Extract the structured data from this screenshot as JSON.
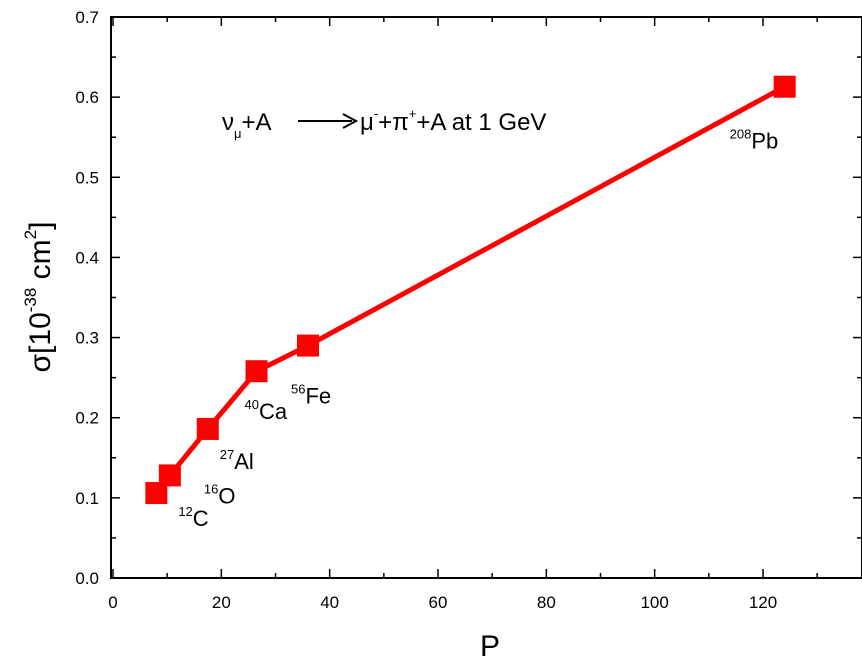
{
  "chart_data": {
    "type": "line",
    "xlabel": "P",
    "ylabel_main": "σ[10",
    "ylabel_exp": "-38",
    "ylabel_unit": " cm",
    "ylabel_unit_exp": "2",
    "ylabel_close": "]",
    "xlim": [
      0,
      135
    ],
    "ylim": [
      0,
      0.7
    ],
    "x_ticks": [
      0,
      20,
      40,
      60,
      80,
      100,
      120
    ],
    "x_tick_labels": [
      "0",
      "20",
      "40",
      "60",
      "80",
      "100",
      "120"
    ],
    "y_ticks": [
      0,
      0.1,
      0.2,
      0.3,
      0.4,
      0.5,
      0.6,
      0.7
    ],
    "y_tick_labels": [
      "0.0",
      "0.1",
      "0.2",
      "0.3",
      "0.4",
      "0.5",
      "0.6",
      "0.7"
    ],
    "series_color": "#ff0000",
    "annotation": {
      "nu": "ν",
      "mu_sub": "μ",
      "plus_a": "+A",
      "mu": "μ",
      "minus": "-",
      "plus": "+",
      "pi": "π",
      "pi_sup": "+",
      "tail": "+A at 1 GeV"
    },
    "points": [
      {
        "x": 8,
        "y": 0.106,
        "mass": "12",
        "element": "C"
      },
      {
        "x": 10.5,
        "y": 0.128,
        "mass": "16",
        "element": "O"
      },
      {
        "x": 17.5,
        "y": 0.186,
        "mass": "27",
        "element": "Al"
      },
      {
        "x": 26.5,
        "y": 0.258,
        "mass": "40",
        "element": "Ca"
      },
      {
        "x": 36,
        "y": 0.29,
        "mass": "56",
        "element": "Fe"
      },
      {
        "x": 124,
        "y": 0.613,
        "mass": "208",
        "element": "Pb"
      }
    ]
  }
}
